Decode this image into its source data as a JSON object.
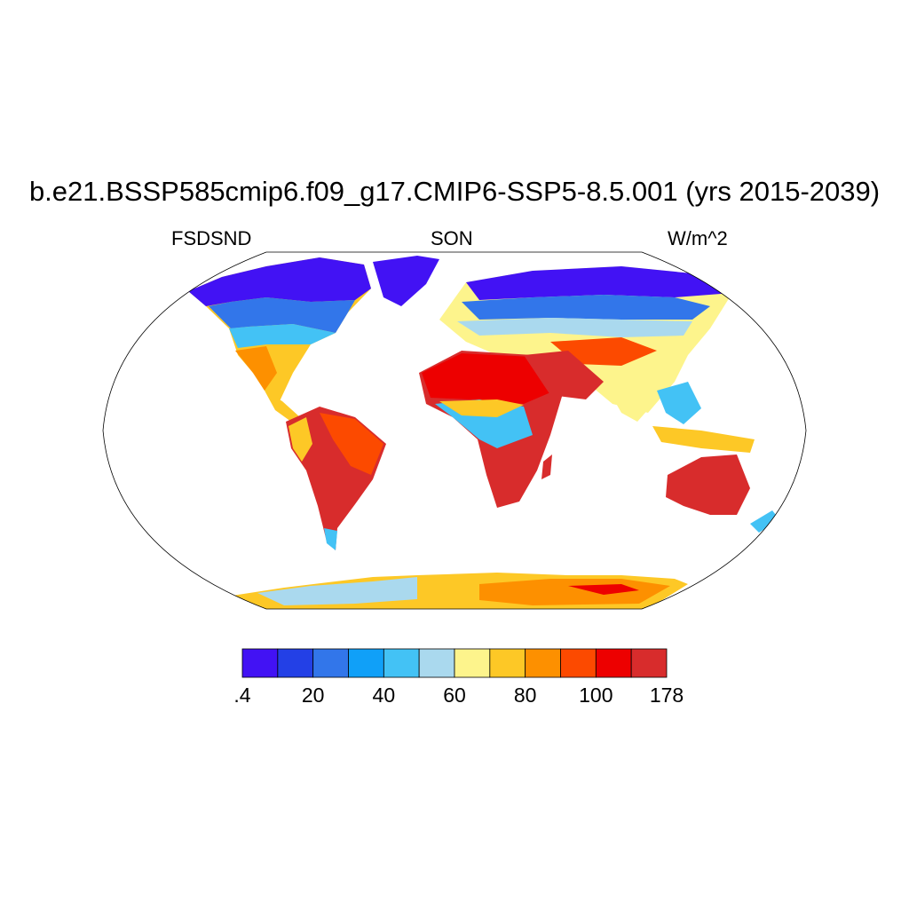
{
  "title": "b.e21.BSSP585cmip6.f09_g17.CMIP6-SSP5-8.5.001 (yrs 2015-2039)",
  "subtitle_left": "FSDSND",
  "subtitle_center": "SON",
  "subtitle_right": "W/m^2",
  "colorbar": {
    "colors": [
      "#4212f4",
      "#2340e6",
      "#3276ea",
      "#10a0f8",
      "#43c2f5",
      "#aad9ee",
      "#fdf48c",
      "#fdc826",
      "#fd9000",
      "#fc4a00",
      "#ed0000",
      "#d82c2c"
    ],
    "tick_labels": [
      ".4",
      "20",
      "40",
      "60",
      "80",
      "100",
      "178"
    ]
  },
  "map": {
    "projection": "robinson",
    "background": "#ffffff",
    "ocean_masked": true
  }
}
